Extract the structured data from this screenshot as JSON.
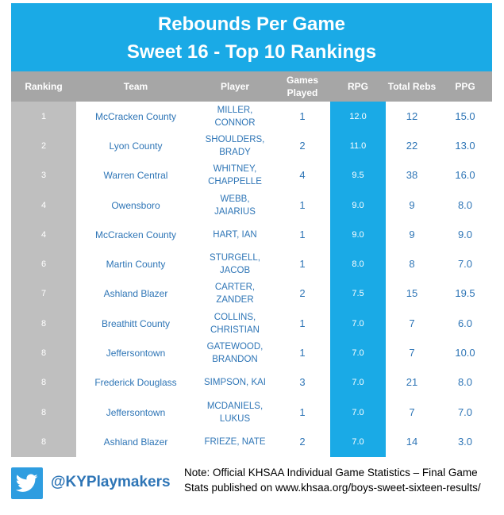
{
  "title_line1": "Rebounds Per Game",
  "title_line2": "Sweet 16 - Top 10 Rankings",
  "colors": {
    "banner": "#1aaae6",
    "header": "#a6a6a6",
    "rank_column": "#bfbfbf",
    "rpg_column": "#1aaae6",
    "text_blue": "#2e75b6"
  },
  "chart_data": {
    "type": "table",
    "columns": [
      "Ranking",
      "Team",
      "Player",
      "Games Played",
      "RPG",
      "Total Rebs",
      "PPG"
    ],
    "rows": [
      [
        "1",
        "McCracken County",
        "MILLER, CONNOR",
        "1",
        "12.0",
        "12",
        "15.0"
      ],
      [
        "2",
        "Lyon County",
        "SHOULDERS, BRADY",
        "2",
        "11.0",
        "22",
        "13.0"
      ],
      [
        "3",
        "Warren Central",
        "WHITNEY, CHAPPELLE",
        "4",
        "9.5",
        "38",
        "16.0"
      ],
      [
        "4",
        "Owensboro",
        "WEBB, JAIARIUS",
        "1",
        "9.0",
        "9",
        "8.0"
      ],
      [
        "4",
        "McCracken County",
        "HART, IAN",
        "1",
        "9.0",
        "9",
        "9.0"
      ],
      [
        "6",
        "Martin County",
        "STURGELL, JACOB",
        "1",
        "8.0",
        "8",
        "7.0"
      ],
      [
        "7",
        "Ashland Blazer",
        "CARTER, ZANDER",
        "2",
        "7.5",
        "15",
        "19.5"
      ],
      [
        "8",
        "Breathitt County",
        "COLLINS, CHRISTIAN",
        "1",
        "7.0",
        "7",
        "6.0"
      ],
      [
        "8",
        "Jeffersontown",
        "GATEWOOD, BRANDON",
        "1",
        "7.0",
        "7",
        "10.0"
      ],
      [
        "8",
        "Frederick Douglass",
        "SIMPSON, KAI",
        "3",
        "7.0",
        "21",
        "8.0"
      ],
      [
        "8",
        "Jeffersontown",
        "MCDANIELS, LUKUS",
        "1",
        "7.0",
        "7",
        "7.0"
      ],
      [
        "8",
        "Ashland Blazer",
        "FRIEZE, NATE",
        "2",
        "7.0",
        "14",
        "3.0"
      ]
    ]
  },
  "footer": {
    "icon": "twitter-bird-icon",
    "handle": "@KYPlaymakers",
    "note": "Note: Official KHSAA Individual Game Statistics – Final Game Stats published on www.khsaa.org/boys-sweet-sixteen-results/"
  }
}
